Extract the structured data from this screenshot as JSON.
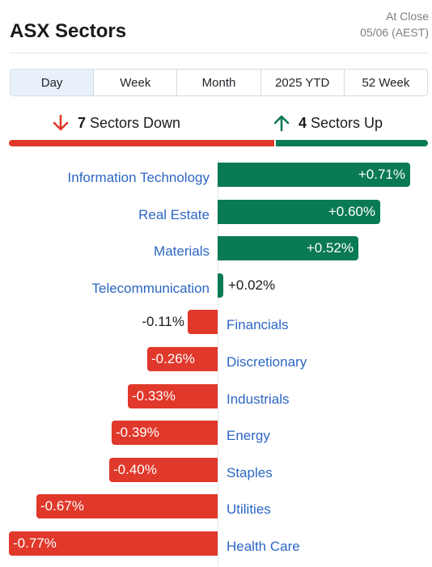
{
  "header": {
    "title": "ASX Sectors",
    "status_line1": "At Close",
    "status_line2": "05/06 (AEST)"
  },
  "tabs": [
    {
      "label": "Day",
      "active": true
    },
    {
      "label": "Week",
      "active": false
    },
    {
      "label": "Month",
      "active": false
    },
    {
      "label": "2025 YTD",
      "active": false
    },
    {
      "label": "52 Week",
      "active": false
    }
  ],
  "summary": {
    "down_count": "7",
    "down_label": "Sectors Down",
    "up_count": "4",
    "up_label": "Sectors Up",
    "down_color": "#e0382b",
    "up_color": "#0a7a53"
  },
  "chart_data": {
    "type": "bar",
    "orientation": "horizontal",
    "categories": [
      "Information Technology",
      "Real Estate",
      "Materials",
      "Telecommunication",
      "Financials",
      "Discretionary",
      "Industrials",
      "Energy",
      "Staples",
      "Utilities",
      "Health Care"
    ],
    "values": [
      0.71,
      0.6,
      0.52,
      0.02,
      -0.11,
      -0.26,
      -0.33,
      -0.39,
      -0.4,
      -0.67,
      -0.77
    ],
    "labels": [
      "+0.71%",
      "+0.60%",
      "+0.52%",
      "+0.02%",
      "-0.11%",
      "-0.26%",
      "-0.33%",
      "-0.39%",
      "-0.40%",
      "-0.67%",
      "-0.77%"
    ],
    "colors": {
      "positive": "#0a7a53",
      "negative": "#e0382b"
    }
  }
}
